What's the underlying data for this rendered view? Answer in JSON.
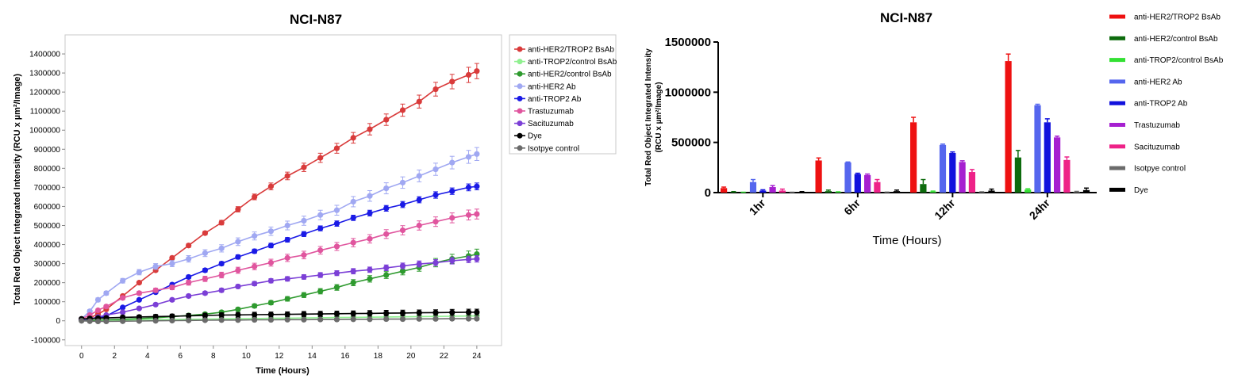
{
  "left_chart": {
    "title": "NCI-N87",
    "xlabel": "Time (Hours)",
    "ylabel": "Total Red Object Integrated Intensity (RCU x µm²/Image)",
    "yticks": [
      "-100000",
      "0",
      "100000",
      "200000",
      "300000",
      "400000",
      "500000",
      "600000",
      "700000",
      "800000",
      "900000",
      "1000000",
      "1100000",
      "1200000",
      "1300000",
      "1400000"
    ],
    "xticks": [
      "0",
      "2",
      "4",
      "6",
      "8",
      "10",
      "12",
      "14",
      "16",
      "18",
      "20",
      "22",
      "24"
    ],
    "legend": [
      "anti-HER2/TROP2 BsAb",
      "anti-TROP2/control BsAb",
      "anti-HER2/control BsAb",
      "anti-HER2 Ab",
      "anti-TROP2 Ab",
      "Trastuzumab",
      "Sacituzumab",
      "Dye",
      "Isotpye control"
    ]
  },
  "right_chart": {
    "title": "NCI-N87",
    "xlabel": "Time (Hours)",
    "ylabel_line1": "Total Red Object Integrated Intensity",
    "ylabel_line2": "(RCU x µm²/Image)",
    "yticks": [
      "0",
      "500000",
      "1000000",
      "1500000"
    ],
    "categories": [
      "1hr",
      "6hr",
      "12hr",
      "24hr"
    ],
    "legend": [
      "anti-HER2/TROP2 BsAb",
      "anti-HER2/control BsAb",
      "anti-TROP2/control BsAb",
      "anti-HER2 Ab",
      "anti-TROP2 Ab",
      "Trastuzumab",
      "Sacituzumab",
      "Isotpye control",
      "Dye"
    ]
  },
  "chart_data": [
    {
      "type": "line",
      "title": "NCI-N87",
      "xlabel": "Time (Hours)",
      "ylabel": "Total Red Object Integrated Intensity (RCU x µm²/Image)",
      "xlim": [
        -1,
        25.5
      ],
      "ylim": [
        -130000,
        1500000
      ],
      "grid": false,
      "legend_position": "right",
      "x": [
        0,
        0.5,
        1,
        1.5,
        2.5,
        3.5,
        4.5,
        5.5,
        6.5,
        7.5,
        8.5,
        9.5,
        10.5,
        11.5,
        12.5,
        13.5,
        14.5,
        15.5,
        16.5,
        17.5,
        18.5,
        19.5,
        20.5,
        21.5,
        22.5,
        23.5,
        24
      ],
      "series": [
        {
          "name": "anti-HER2/TROP2 BsAb",
          "color": "#d93b3b",
          "values": [
            5000,
            15000,
            35000,
            60000,
            130000,
            200000,
            265000,
            330000,
            395000,
            460000,
            515000,
            585000,
            650000,
            705000,
            760000,
            805000,
            855000,
            905000,
            960000,
            1005000,
            1055000,
            1105000,
            1150000,
            1215000,
            1255000,
            1290000,
            1310000
          ],
          "err": [
            3000,
            4000,
            5000,
            5000,
            6000,
            7000,
            8000,
            9000,
            10000,
            10000,
            12000,
            14000,
            15000,
            18000,
            20000,
            22000,
            24000,
            26000,
            28000,
            30000,
            30000,
            32000,
            34000,
            36000,
            38000,
            40000,
            40000
          ]
        },
        {
          "name": "anti-TROP2/control BsAb",
          "color": "#90f090",
          "values": [
            2000,
            2000,
            3000,
            3000,
            4000,
            5000,
            6000,
            7000,
            8000,
            9000,
            10000,
            11000,
            12000,
            13000,
            14000,
            15000,
            16000,
            17000,
            18000,
            19000,
            20000,
            21000,
            22000,
            23000,
            24000,
            25000,
            25000
          ],
          "err": [
            2000,
            2000,
            2000,
            2000,
            2000,
            2000,
            2000,
            2000,
            2000,
            2000,
            2000,
            2000,
            2000,
            2000,
            2000,
            2000,
            2000,
            2000,
            2000,
            2000,
            2000,
            2000,
            2000,
            2000,
            2000,
            2000,
            2000
          ]
        },
        {
          "name": "anti-HER2/control BsAb",
          "color": "#2e9a2e",
          "values": [
            2000,
            3000,
            4000,
            5000,
            8000,
            12000,
            16000,
            22000,
            28000,
            35000,
            45000,
            60000,
            78000,
            95000,
            115000,
            135000,
            155000,
            175000,
            200000,
            220000,
            240000,
            260000,
            280000,
            305000,
            325000,
            340000,
            350000
          ],
          "err": [
            2000,
            2000,
            2000,
            2000,
            3000,
            3000,
            4000,
            5000,
            6000,
            7000,
            8000,
            9000,
            10000,
            11000,
            12000,
            13000,
            14000,
            15000,
            16000,
            17000,
            18000,
            19000,
            20000,
            22000,
            24000,
            26000,
            26000
          ]
        },
        {
          "name": "anti-HER2 Ab",
          "color": "#a0a8f2",
          "values": [
            10000,
            50000,
            110000,
            145000,
            210000,
            255000,
            285000,
            300000,
            325000,
            355000,
            380000,
            415000,
            445000,
            470000,
            500000,
            525000,
            555000,
            580000,
            625000,
            655000,
            695000,
            725000,
            760000,
            795000,
            830000,
            860000,
            875000
          ],
          "err": [
            5000,
            8000,
            10000,
            10000,
            12000,
            14000,
            15000,
            16000,
            17000,
            18000,
            19000,
            20000,
            21000,
            22000,
            23000,
            24000,
            25000,
            26000,
            27000,
            28000,
            29000,
            30000,
            31000,
            32000,
            33000,
            34000,
            34000
          ]
        },
        {
          "name": "anti-TROP2 Ab",
          "color": "#1a1ae6",
          "values": [
            5000,
            10000,
            15000,
            25000,
            70000,
            110000,
            150000,
            190000,
            230000,
            265000,
            300000,
            335000,
            365000,
            395000,
            425000,
            455000,
            485000,
            510000,
            540000,
            565000,
            590000,
            610000,
            635000,
            660000,
            680000,
            700000,
            705000
          ],
          "err": [
            3000,
            3000,
            4000,
            4000,
            5000,
            6000,
            7000,
            8000,
            9000,
            10000,
            10000,
            11000,
            11000,
            12000,
            12000,
            13000,
            13000,
            14000,
            14000,
            15000,
            15000,
            16000,
            16000,
            17000,
            17000,
            18000,
            18000
          ]
        },
        {
          "name": "Trastuzumab",
          "color": "#e0559e",
          "values": [
            10000,
            30000,
            55000,
            75000,
            120000,
            145000,
            160000,
            175000,
            200000,
            220000,
            240000,
            265000,
            285000,
            305000,
            330000,
            345000,
            370000,
            390000,
            410000,
            430000,
            455000,
            475000,
            500000,
            520000,
            540000,
            555000,
            560000
          ],
          "err": [
            4000,
            6000,
            8000,
            8000,
            9000,
            10000,
            11000,
            12000,
            13000,
            14000,
            15000,
            16000,
            17000,
            18000,
            19000,
            20000,
            20000,
            21000,
            22000,
            22000,
            23000,
            24000,
            24000,
            25000,
            26000,
            26000,
            26000
          ]
        },
        {
          "name": "Sacituzumab",
          "color": "#7b3fd6",
          "values": [
            5000,
            10000,
            20000,
            30000,
            45000,
            65000,
            85000,
            110000,
            130000,
            145000,
            160000,
            180000,
            195000,
            210000,
            220000,
            230000,
            240000,
            250000,
            260000,
            268000,
            278000,
            288000,
            298000,
            305000,
            315000,
            322000,
            325000
          ],
          "err": [
            3000,
            3000,
            4000,
            4000,
            5000,
            6000,
            7000,
            8000,
            9000,
            9000,
            10000,
            10000,
            11000,
            11000,
            12000,
            12000,
            13000,
            13000,
            14000,
            14000,
            15000,
            15000,
            16000,
            16000,
            17000,
            17000,
            17000
          ]
        },
        {
          "name": "Dye",
          "color": "#000000",
          "values": [
            10000,
            12000,
            14000,
            15000,
            18000,
            20000,
            22000,
            24000,
            26000,
            28000,
            30000,
            31000,
            32000,
            33000,
            34000,
            35000,
            36000,
            37000,
            38000,
            39000,
            40000,
            41000,
            42000,
            43000,
            44000,
            45000,
            45000
          ],
          "err": [
            8000,
            8000,
            9000,
            9000,
            10000,
            10000,
            11000,
            11000,
            12000,
            12000,
            12000,
            13000,
            13000,
            13000,
            13000,
            14000,
            14000,
            14000,
            14000,
            15000,
            15000,
            15000,
            15000,
            15000,
            16000,
            16000,
            16000
          ]
        },
        {
          "name": "Isotpye control",
          "color": "#6b6b6b",
          "values": [
            0,
            -2000,
            -3000,
            -3000,
            -2000,
            -1000,
            0,
            1000,
            2000,
            3000,
            4000,
            4000,
            5000,
            5000,
            6000,
            6000,
            7000,
            7000,
            8000,
            8000,
            9000,
            9000,
            10000,
            10000,
            11000,
            11000,
            11000
          ],
          "err": [
            5000,
            5000,
            5000,
            5000,
            5000,
            5000,
            5000,
            5000,
            5000,
            5000,
            5000,
            5000,
            5000,
            5000,
            5000,
            5000,
            5000,
            5000,
            5000,
            5000,
            5000,
            5000,
            5000,
            5000,
            5000,
            5000,
            5000
          ]
        }
      ]
    },
    {
      "type": "bar",
      "title": "NCI-N87",
      "xlabel": "Time (Hours)",
      "ylabel": "Total Red Object Integrated Intensity (RCU x µm²/Image)",
      "ylim": [
        0,
        1500000
      ],
      "grid": false,
      "legend_position": "right",
      "categories": [
        "1hr",
        "6hr",
        "12hr",
        "24hr"
      ],
      "series": [
        {
          "name": "anti-HER2/TROP2 BsAb",
          "color": "#ee1111",
          "values": [
            45000,
            320000,
            700000,
            1310000
          ],
          "err": [
            10000,
            25000,
            50000,
            70000
          ]
        },
        {
          "name": "anti-HER2/control BsAb",
          "color": "#0d6b0d",
          "values": [
            5000,
            15000,
            85000,
            350000
          ],
          "err": [
            5000,
            10000,
            45000,
            70000
          ]
        },
        {
          "name": "anti-TROP2/control BsAb",
          "color": "#33e033",
          "values": [
            2000,
            5000,
            10000,
            30000
          ],
          "err": [
            2000,
            3000,
            5000,
            8000
          ]
        },
        {
          "name": "anti-HER2 Ab",
          "color": "#5566ee",
          "values": [
            105000,
            300000,
            475000,
            870000
          ],
          "err": [
            25000,
            5000,
            8000,
            10000
          ]
        },
        {
          "name": "anti-TROP2 Ab",
          "color": "#1111dd",
          "values": [
            20000,
            185000,
            395000,
            700000
          ],
          "err": [
            8000,
            8000,
            10000,
            35000
          ]
        },
        {
          "name": "Trastuzumab",
          "color": "#a620d0",
          "values": [
            55000,
            175000,
            305000,
            550000
          ],
          "err": [
            15000,
            10000,
            12000,
            12000
          ]
        },
        {
          "name": "Sacituzumab",
          "color": "#ee2288",
          "values": [
            20000,
            105000,
            205000,
            325000
          ],
          "err": [
            15000,
            25000,
            25000,
            30000
          ]
        },
        {
          "name": "Isotpye control",
          "color": "#6b6b6b",
          "values": [
            2000,
            3000,
            5000,
            8000
          ],
          "err": [
            2000,
            2000,
            3000,
            4000
          ]
        },
        {
          "name": "Dye",
          "color": "#000000",
          "values": [
            5000,
            15000,
            20000,
            25000
          ],
          "err": [
            5000,
            10000,
            15000,
            20000
          ]
        }
      ]
    }
  ]
}
